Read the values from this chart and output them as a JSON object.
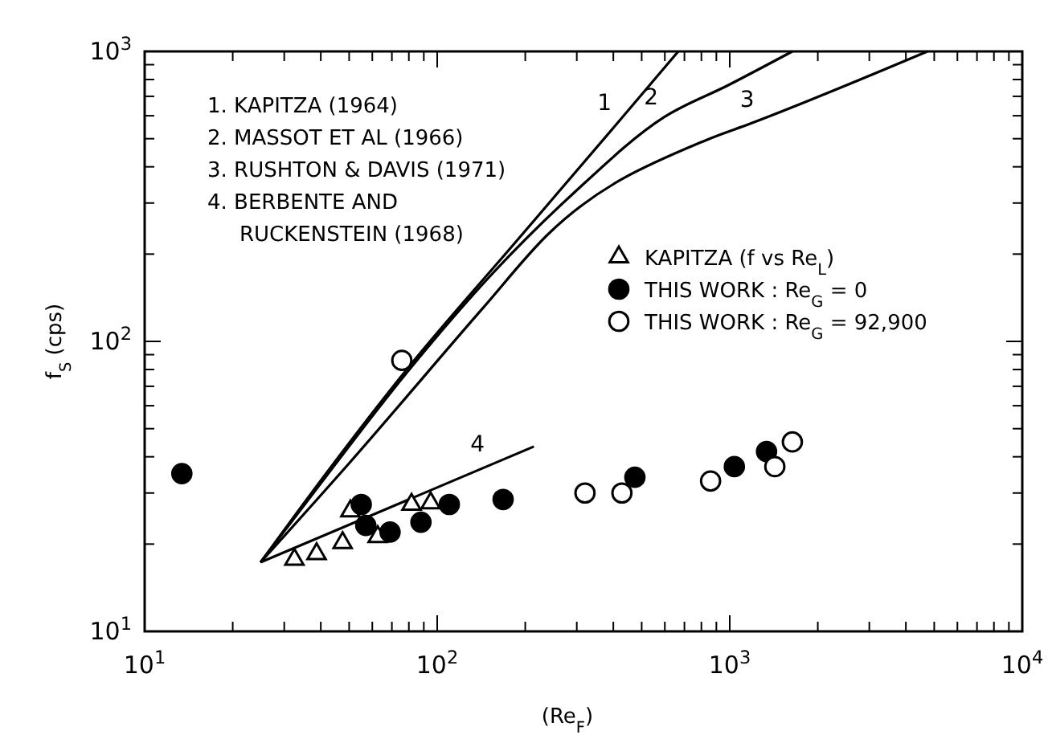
{
  "chart_data": {
    "type": "scatter",
    "xlabel": "(Re$_{F}$)",
    "ylabel": "f$_{S}$ (cps)",
    "xlim": [
      10,
      10000
    ],
    "ylim": [
      10,
      1000
    ],
    "log": "xy",
    "grid": false,
    "legend": "center right",
    "xticks": [
      {
        "value": 10,
        "label": "10$^{1}$"
      },
      {
        "value": 20,
        "label": null
      },
      {
        "value": 30,
        "label": null
      },
      {
        "value": 40,
        "label": null
      },
      {
        "value": 50,
        "label": null
      },
      {
        "value": 60,
        "label": null
      },
      {
        "value": 70,
        "label": null
      },
      {
        "value": 80,
        "label": null
      },
      {
        "value": 90,
        "label": null
      },
      {
        "value": 100,
        "label": "10$^{2}$"
      },
      {
        "value": 200,
        "label": null
      },
      {
        "value": 300,
        "label": null
      },
      {
        "value": 400,
        "label": null
      },
      {
        "value": 500,
        "label": null
      },
      {
        "value": 600,
        "label": null
      },
      {
        "value": 700,
        "label": null
      },
      {
        "value": 800,
        "label": null
      },
      {
        "value": 900,
        "label": null
      },
      {
        "value": 1000,
        "label": "10$^{3}$"
      },
      {
        "value": 2000,
        "label": null
      },
      {
        "value": 3000,
        "label": null
      },
      {
        "value": 4000,
        "label": null
      },
      {
        "value": 5000,
        "label": null
      },
      {
        "value": 6000,
        "label": null
      },
      {
        "value": 7000,
        "label": null
      },
      {
        "value": 8000,
        "label": null
      },
      {
        "value": 9000,
        "label": null
      },
      {
        "value": 10000,
        "label": "10$^{4}$"
      }
    ],
    "yticks": [
      {
        "value": 10,
        "label": "10$^{1}$"
      },
      {
        "value": 20,
        "label": null
      },
      {
        "value": 30,
        "label": null
      },
      {
        "value": 40,
        "label": null
      },
      {
        "value": 50,
        "label": null
      },
      {
        "value": 60,
        "label": null
      },
      {
        "value": 70,
        "label": null
      },
      {
        "value": 80,
        "label": null
      },
      {
        "value": 90,
        "label": null
      },
      {
        "value": 100,
        "label": "10$^{2}$"
      },
      {
        "value": 200,
        "label": null
      },
      {
        "value": 300,
        "label": null
      },
      {
        "value": 400,
        "label": null
      },
      {
        "value": 500,
        "label": null
      },
      {
        "value": 600,
        "label": null
      },
      {
        "value": 700,
        "label": null
      },
      {
        "value": 800,
        "label": null
      },
      {
        "value": 900,
        "label": null
      },
      {
        "value": 1000,
        "label": "10$^{3}$"
      }
    ],
    "annotations": [
      "1. KAPITZA (1964)",
      "2. MASSOT ET AL (1966)",
      "3. RUSHTON & DAVIS (1971)",
      "4. BERBENTE AND\nRUCKENSTEIN (1968)",
      {
        "text": "1",
        "x": 413,
        "y": 566
      },
      {
        "text": "2",
        "x": 596,
        "y": 593
      },
      {
        "text": "3",
        "x": 1270,
        "y": 581
      },
      {
        "text": "4",
        "x": 152,
        "y": 37.6
      }
    ],
    "series": [
      {
        "type": "line",
        "color": "#000000",
        "marker": "none",
        "line_style": "solid",
        "x": [
          24.9,
          36.8,
          78.7,
          184,
          407,
          667
        ],
        "values": [
          17.3,
          29.6,
          80,
          218,
          556,
          1000
        ]
      },
      {
        "type": "line",
        "color": "#000000",
        "marker": "none",
        "line_style": "solid",
        "x": [
          24.9,
          36.8,
          78.7,
          155,
          293,
          596,
          989,
          1637
        ],
        "values": [
          17.3,
          29,
          78,
          172,
          325,
          593,
          765,
          1000
        ]
      },
      {
        "type": "line",
        "color": "#000000",
        "marker": "none",
        "line_style": "solid",
        "x": [
          24.9,
          50,
          143,
          236,
          837,
          1178,
          4740
        ],
        "values": [
          17.3,
          38,
          130,
          231,
          496,
          564,
          1000
        ]
      },
      {
        "type": "line",
        "color": "#000000",
        "marker": "none",
        "line_style": "solid",
        "x": [
          24.9,
          214
        ],
        "values": [
          17.3,
          43.4
        ]
      },
      {
        "name": "KAPITZA (f vs Re$_{L}$)",
        "marker": "triangle",
        "color": "#ffffff",
        "x": [
          32.5,
          38.7,
          47.5,
          50.5,
          62.6,
          81.7,
          95
        ],
        "values": [
          17.7,
          18.5,
          20.2,
          26,
          21.2,
          27.4,
          27.7
        ]
      },
      {
        "name": "THIS WORK : Re$_{G}$ = 0",
        "marker": "circle",
        "color": "#000000",
        "x": [
          13.4,
          55,
          57,
          69,
          88,
          110,
          168,
          474,
          1037,
          1336
        ],
        "values": [
          35,
          27.4,
          23.2,
          22,
          23.8,
          27.4,
          28.5,
          34,
          37,
          41.7
        ]
      },
      {
        "name": "THIS WORK : Re$_{G}$ = 92,900",
        "marker": "circle",
        "color": "#ffffff",
        "x": [
          75.7,
          320,
          428,
          860,
          1426,
          1637
        ],
        "values": [
          86,
          30,
          30,
          33,
          37,
          45
        ]
      }
    ]
  }
}
